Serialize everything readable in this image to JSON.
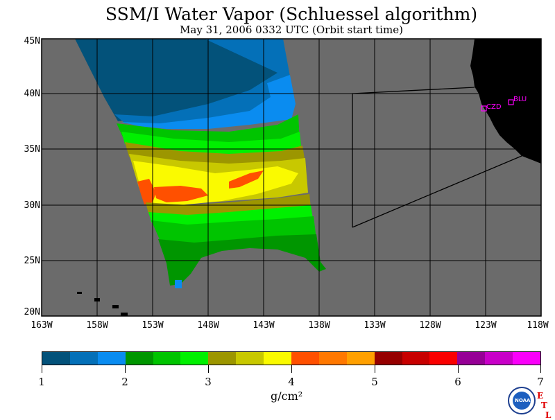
{
  "title": "SSM/I Water Vapor (Schluessel algorithm)",
  "subtitle": "May 31, 2006  0332 UTC  (Orbit start time)",
  "map": {
    "lat_labels": [
      "45N",
      "40N",
      "35N",
      "30N",
      "25N",
      "20N"
    ],
    "lon_labels": [
      "163W",
      "158W",
      "153W",
      "148W",
      "143W",
      "138W",
      "133W",
      "128W",
      "123W",
      "118W"
    ],
    "stations": [
      {
        "id": "czd",
        "label": "CZD"
      },
      {
        "id": "blu",
        "label": "BLU"
      }
    ],
    "colors": {
      "ocean": "#6b6b6b",
      "land": "#000000",
      "station": "#ff00ff"
    }
  },
  "colorbar": {
    "colors": [
      "#03527a",
      "#0470b8",
      "#0a8cf0",
      "#009600",
      "#00c400",
      "#00f000",
      "#9c9600",
      "#c8c800",
      "#fafa00",
      "#ff5000",
      "#ff7800",
      "#ffa000",
      "#960000",
      "#c80000",
      "#fa0000",
      "#960096",
      "#c800c8",
      "#fa00fa"
    ],
    "tick_labels": [
      "1",
      "2",
      "3",
      "4",
      "5",
      "6",
      "7"
    ],
    "unit": "g/cm²"
  },
  "logos": {
    "noaa": "NOAA",
    "etl_letters": [
      "E",
      "T",
      "L"
    ]
  }
}
